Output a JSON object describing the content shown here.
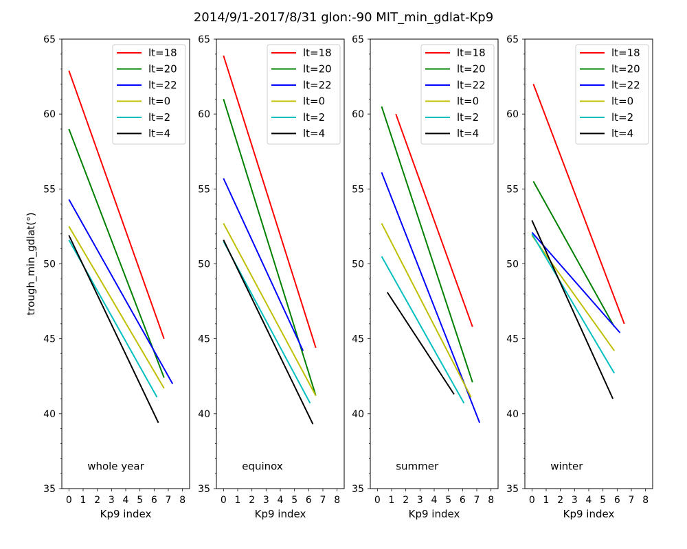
{
  "suptitle": "2014/9/1-2017/8/31 glon:-90 MIT_min_gdlat-Kp9",
  "chart_data": [
    {
      "type": "line",
      "annotation": "whole year",
      "xlabel": "Kp9 index",
      "ylabel": "trough_min_gdlat(°)",
      "xlim": [
        -0.5,
        8.5
      ],
      "ylim": [
        35,
        65
      ],
      "xticks": [
        "0",
        "1",
        "2",
        "3",
        "4",
        "5",
        "6",
        "7",
        "8"
      ],
      "yticks": [
        "35",
        "40",
        "45",
        "50",
        "55",
        "60",
        "65"
      ],
      "legend_position": "top-right",
      "series": [
        {
          "name": "lt=18",
          "color": "#ff0000",
          "x": [
            0,
            6.7
          ],
          "y": [
            62.9,
            45.0
          ]
        },
        {
          "name": "lt=20",
          "color": "#008000",
          "x": [
            0,
            6.7
          ],
          "y": [
            59.0,
            42.4
          ]
        },
        {
          "name": "lt=22",
          "color": "#0000ff",
          "x": [
            0,
            7.3
          ],
          "y": [
            54.3,
            42.0
          ]
        },
        {
          "name": "lt=0",
          "color": "#bfbf00",
          "x": [
            0,
            6.7
          ],
          "y": [
            52.5,
            41.7
          ]
        },
        {
          "name": "lt=2",
          "color": "#00bfbf",
          "x": [
            0,
            6.2
          ],
          "y": [
            51.6,
            41.1
          ]
        },
        {
          "name": "lt=4",
          "color": "#000000",
          "x": [
            0,
            6.3
          ],
          "y": [
            51.9,
            39.4
          ]
        }
      ]
    },
    {
      "type": "line",
      "annotation": "equinox",
      "xlabel": "Kp9 index",
      "ylabel": "",
      "xlim": [
        -0.5,
        8.5
      ],
      "ylim": [
        35,
        65
      ],
      "xticks": [
        "0",
        "1",
        "2",
        "3",
        "4",
        "5",
        "6",
        "7",
        "8"
      ],
      "yticks": [
        "35",
        "40",
        "45",
        "50",
        "55",
        "60",
        "65"
      ],
      "legend_position": "top-right",
      "series": [
        {
          "name": "lt=18",
          "color": "#ff0000",
          "x": [
            0,
            6.5
          ],
          "y": [
            63.9,
            44.4
          ]
        },
        {
          "name": "lt=20",
          "color": "#008000",
          "x": [
            0,
            6.5
          ],
          "y": [
            61.0,
            41.2
          ]
        },
        {
          "name": "lt=22",
          "color": "#0000ff",
          "x": [
            0,
            5.6
          ],
          "y": [
            55.7,
            44.2
          ]
        },
        {
          "name": "lt=0",
          "color": "#bfbf00",
          "x": [
            0,
            6.5
          ],
          "y": [
            52.7,
            41.2
          ]
        },
        {
          "name": "lt=2",
          "color": "#00bfbf",
          "x": [
            0,
            6.1
          ],
          "y": [
            51.5,
            40.7
          ]
        },
        {
          "name": "lt=4",
          "color": "#000000",
          "x": [
            0,
            6.3
          ],
          "y": [
            51.6,
            39.3
          ]
        }
      ]
    },
    {
      "type": "line",
      "annotation": "summer",
      "xlabel": "Kp9 index",
      "ylabel": "",
      "xlim": [
        -0.5,
        8.5
      ],
      "ylim": [
        35,
        65
      ],
      "xticks": [
        "0",
        "1",
        "2",
        "3",
        "4",
        "5",
        "6",
        "7",
        "8"
      ],
      "yticks": [
        "35",
        "40",
        "45",
        "50",
        "55",
        "60",
        "65"
      ],
      "legend_position": "top-right",
      "series": [
        {
          "name": "lt=18",
          "color": "#ff0000",
          "x": [
            1.3,
            6.7
          ],
          "y": [
            60.0,
            45.8
          ]
        },
        {
          "name": "lt=20",
          "color": "#008000",
          "x": [
            0.3,
            6.7
          ],
          "y": [
            60.5,
            42.1
          ]
        },
        {
          "name": "lt=22",
          "color": "#0000ff",
          "x": [
            0.3,
            7.2
          ],
          "y": [
            56.1,
            39.4
          ]
        },
        {
          "name": "lt=0",
          "color": "#bfbf00",
          "x": [
            0.3,
            6.6
          ],
          "y": [
            52.7,
            41.1
          ]
        },
        {
          "name": "lt=2",
          "color": "#00bfbf",
          "x": [
            0.3,
            6.1
          ],
          "y": [
            50.5,
            40.7
          ]
        },
        {
          "name": "lt=4",
          "color": "#000000",
          "x": [
            0.7,
            5.4
          ],
          "y": [
            48.1,
            41.3
          ]
        }
      ]
    },
    {
      "type": "line",
      "annotation": "winter",
      "xlabel": "Kp9 index",
      "ylabel": "",
      "xlim": [
        -0.5,
        8.5
      ],
      "ylim": [
        35,
        65
      ],
      "xticks": [
        "0",
        "1",
        "2",
        "3",
        "4",
        "5",
        "6",
        "7",
        "8"
      ],
      "yticks": [
        "35",
        "40",
        "45",
        "50",
        "55",
        "60",
        "65"
      ],
      "legend_position": "top-right",
      "series": [
        {
          "name": "lt=18",
          "color": "#ff0000",
          "x": [
            0.1,
            6.5
          ],
          "y": [
            62.0,
            46.0
          ]
        },
        {
          "name": "lt=20",
          "color": "#008000",
          "x": [
            0.1,
            5.8
          ],
          "y": [
            55.5,
            45.8
          ]
        },
        {
          "name": "lt=22",
          "color": "#0000ff",
          "x": [
            0,
            6.2
          ],
          "y": [
            52.1,
            45.4
          ]
        },
        {
          "name": "lt=0",
          "color": "#bfbf00",
          "x": [
            0,
            5.8
          ],
          "y": [
            51.9,
            44.2
          ]
        },
        {
          "name": "lt=2",
          "color": "#00bfbf",
          "x": [
            0,
            5.8
          ],
          "y": [
            52.0,
            42.7
          ]
        },
        {
          "name": "lt=4",
          "color": "#000000",
          "x": [
            0,
            5.7
          ],
          "y": [
            52.9,
            41.0
          ]
        }
      ]
    }
  ]
}
